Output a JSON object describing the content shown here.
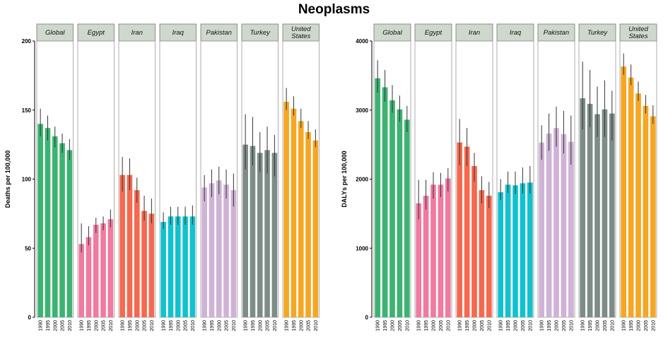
{
  "figure": {
    "title": "Neoplasms"
  },
  "chart_data": [
    {
      "type": "bar",
      "ylabel": "Deaths per 100,000",
      "ylim": [
        0,
        200
      ],
      "yticks": [
        0,
        50,
        100,
        150,
        200
      ],
      "categories": [
        "1990",
        "1995",
        "2000",
        "2005",
        "2010"
      ],
      "series": [
        {
          "name": "Global",
          "color": "#3cb371",
          "values": [
            140,
            137,
            131,
            126,
            121
          ],
          "error": [
            [
              131,
              151
            ],
            [
              128,
              146
            ],
            [
              123,
              138
            ],
            [
              119,
              133
            ],
            [
              114,
              129
            ]
          ]
        },
        {
          "name": "Egypt",
          "color": "#f07aa0",
          "values": [
            53,
            58,
            67,
            68,
            71
          ],
          "error": [
            [
              47,
              68
            ],
            [
              52,
              66
            ],
            [
              61,
              72
            ],
            [
              63,
              73
            ],
            [
              65,
              78
            ]
          ]
        },
        {
          "name": "Iran",
          "color": "#f4694f",
          "values": [
            103,
            103,
            92,
            77,
            75
          ],
          "error": [
            [
              91,
              116
            ],
            [
              92,
              115
            ],
            [
              83,
              101
            ],
            [
              70,
              88
            ],
            [
              68,
              86
            ]
          ]
        },
        {
          "name": "Iraq",
          "color": "#12c1cf",
          "values": [
            69,
            73,
            73,
            73,
            73
          ],
          "error": [
            [
              64,
              76
            ],
            [
              67,
              80
            ],
            [
              67,
              80
            ],
            [
              67,
              80
            ],
            [
              67,
              81
            ]
          ]
        },
        {
          "name": "Pakistan",
          "color": "#cfb2d6",
          "values": [
            94,
            97,
            99,
            96,
            92
          ],
          "error": [
            [
              84,
              103
            ],
            [
              87,
              107
            ],
            [
              89,
              109
            ],
            [
              86,
              107
            ],
            [
              80,
              104
            ]
          ]
        },
        {
          "name": "Turkey",
          "color": "#7e8c87",
          "values": [
            125,
            124,
            119,
            121,
            119
          ],
          "error": [
            [
              107,
              147
            ],
            [
              110,
              145
            ],
            [
              105,
              134
            ],
            [
              104,
              138
            ],
            [
              102,
              132
            ]
          ]
        },
        {
          "name": "United States",
          "color": "#f5a623",
          "values": [
            156,
            151,
            142,
            134,
            128
          ],
          "error": [
            [
              150,
              166
            ],
            [
              146,
              160
            ],
            [
              137,
              151
            ],
            [
              129,
              142
            ],
            [
              123,
              136
            ]
          ]
        }
      ]
    },
    {
      "type": "bar",
      "ylabel": "DALYs per 100,000",
      "ylim": [
        0,
        4000
      ],
      "yticks": [
        0,
        1000,
        2000,
        3000,
        4000
      ],
      "categories": [
        "1990",
        "1995",
        "2000",
        "2005",
        "2010"
      ],
      "series": [
        {
          "name": "Global",
          "color": "#3cb371",
          "values": [
            3460,
            3330,
            3140,
            3010,
            2860
          ],
          "error": [
            [
              3250,
              3720
            ],
            [
              3120,
              3580
            ],
            [
              2960,
              3360
            ],
            [
              2830,
              3210
            ],
            [
              2680,
              3060
            ]
          ]
        },
        {
          "name": "Egypt",
          "color": "#f07aa0",
          "values": [
            1650,
            1760,
            1920,
            1920,
            2010
          ],
          "error": [
            [
              1420,
              1990
            ],
            [
              1560,
              1990
            ],
            [
              1720,
              2100
            ],
            [
              1740,
              2090
            ],
            [
              1820,
              2160
            ]
          ]
        },
        {
          "name": "Iran",
          "color": "#f4694f",
          "values": [
            2530,
            2470,
            2190,
            1840,
            1760
          ],
          "error": [
            [
              2200,
              2870
            ],
            [
              2190,
              2740
            ],
            [
              1960,
              2380
            ],
            [
              1650,
              2040
            ],
            [
              1580,
              1960
            ]
          ]
        },
        {
          "name": "Iraq",
          "color": "#12c1cf",
          "values": [
            1810,
            1920,
            1910,
            1940,
            1950
          ],
          "error": [
            [
              1700,
              2000
            ],
            [
              1800,
              2110
            ],
            [
              1780,
              2110
            ],
            [
              1790,
              2170
            ],
            [
              1790,
              2190
            ]
          ]
        },
        {
          "name": "Pakistan",
          "color": "#cfb2d6",
          "values": [
            2530,
            2660,
            2740,
            2650,
            2540
          ],
          "error": [
            [
              2280,
              2780
            ],
            [
              2410,
              2950
            ],
            [
              2470,
              3050
            ],
            [
              2370,
              2990
            ],
            [
              2210,
              2920
            ]
          ]
        },
        {
          "name": "Turkey",
          "color": "#7e8c87",
          "values": [
            3170,
            3090,
            2940,
            3010,
            2950
          ],
          "error": [
            [
              2720,
              3700
            ],
            [
              2750,
              3580
            ],
            [
              2610,
              3340
            ],
            [
              2610,
              3430
            ],
            [
              2560,
              3280
            ]
          ]
        },
        {
          "name": "United States",
          "color": "#f5a623",
          "values": [
            3630,
            3470,
            3240,
            3060,
            2910
          ],
          "error": [
            [
              3510,
              3820
            ],
            [
              3360,
              3660
            ],
            [
              3130,
              3410
            ],
            [
              2950,
              3220
            ],
            [
              2800,
              3070
            ]
          ]
        }
      ]
    }
  ]
}
